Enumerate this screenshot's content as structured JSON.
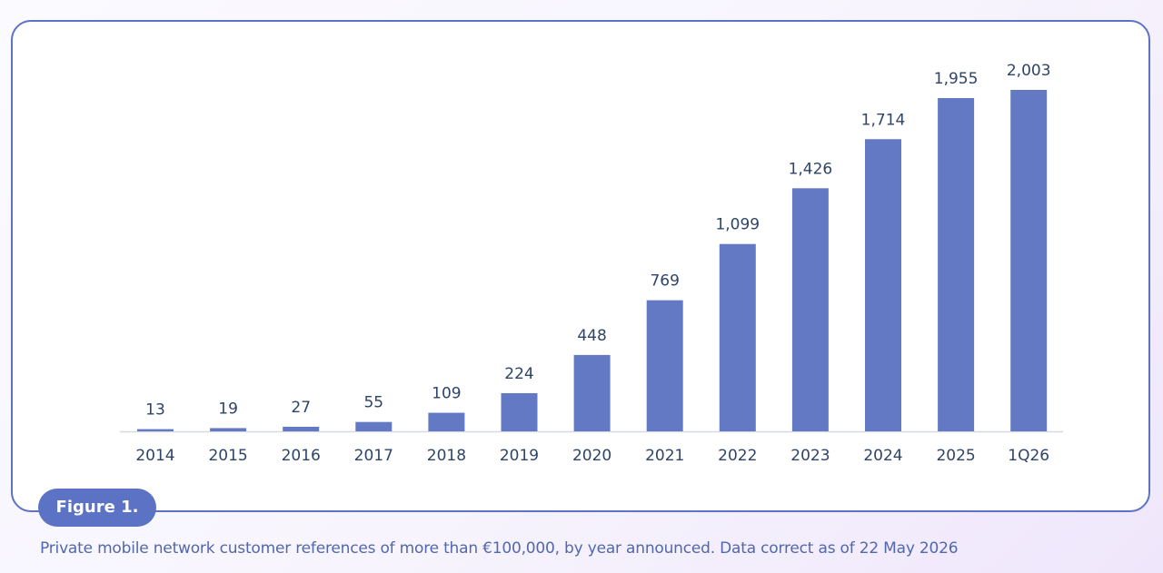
{
  "figure_label": "Figure 1.",
  "caption": "Private mobile network customer references of more than €100,000, by year announced. Data correct as of 22 May 2026",
  "colors": {
    "bar": "#6479c4",
    "frame": "#5b72c5",
    "text": "#2e4468",
    "caption": "#5168ad"
  },
  "chart_data": {
    "type": "bar",
    "title": "",
    "xlabel": "",
    "ylabel": "",
    "grid": false,
    "legend": "none",
    "ylim": [
      0,
      2003
    ],
    "categories": [
      "2014",
      "2015",
      "2016",
      "2017",
      "2018",
      "2019",
      "2020",
      "2021",
      "2022",
      "2023",
      "2024",
      "2025",
      "1Q26"
    ],
    "values": [
      13,
      19,
      27,
      55,
      109,
      224,
      448,
      769,
      1099,
      1426,
      1714,
      1955,
      2003
    ],
    "value_labels": [
      "13",
      "19",
      "27",
      "55",
      "109",
      "224",
      "448",
      "769",
      "1,099",
      "1,426",
      "1,714",
      "1,955",
      "2,003"
    ]
  }
}
